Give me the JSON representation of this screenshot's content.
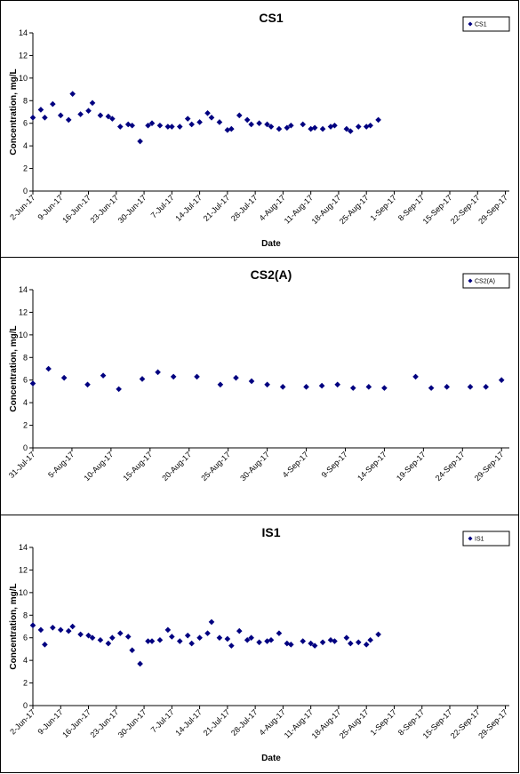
{
  "chart_data": [
    {
      "type": "scatter",
      "title": "CS1",
      "xlabel": "Date",
      "ylabel": "Concentration, mg/L",
      "ylim": [
        0,
        14
      ],
      "yticks": [
        "0",
        "2",
        "4",
        "6",
        "8",
        "10",
        "12",
        "14"
      ],
      "xlim": [
        "2017-06-02",
        "2017-09-30"
      ],
      "xtick_labels": [
        "2-Jun-17",
        "9-Jun-17",
        "16-Jun-17",
        "23-Jun-17",
        "30-Jun-17",
        "7-Jul-17",
        "14-Jul-17",
        "21-Jul-17",
        "28-Jul-17",
        "4-Aug-17",
        "11-Aug-17",
        "18-Aug-17",
        "25-Aug-17",
        "1-Sep-17",
        "8-Sep-17",
        "15-Sep-17",
        "22-Sep-17",
        "29-Sep-17"
      ],
      "xtick_dates": [
        "2017-06-02",
        "2017-06-09",
        "2017-06-16",
        "2017-06-23",
        "2017-06-30",
        "2017-07-07",
        "2017-07-14",
        "2017-07-21",
        "2017-07-28",
        "2017-08-04",
        "2017-08-11",
        "2017-08-18",
        "2017-08-25",
        "2017-09-01",
        "2017-09-08",
        "2017-09-15",
        "2017-09-22",
        "2017-09-29"
      ],
      "legend": "top-right",
      "series": [
        {
          "name": "CS1",
          "color": "#000080",
          "points": [
            {
              "x": "2017-06-02",
              "y": 6.5
            },
            {
              "x": "2017-06-04",
              "y": 7.2
            },
            {
              "x": "2017-06-05",
              "y": 6.5
            },
            {
              "x": "2017-06-07",
              "y": 7.7
            },
            {
              "x": "2017-06-09",
              "y": 6.7
            },
            {
              "x": "2017-06-11",
              "y": 6.3
            },
            {
              "x": "2017-06-12",
              "y": 8.6
            },
            {
              "x": "2017-06-14",
              "y": 6.8
            },
            {
              "x": "2017-06-16",
              "y": 7.1
            },
            {
              "x": "2017-06-17",
              "y": 7.8
            },
            {
              "x": "2017-06-19",
              "y": 6.7
            },
            {
              "x": "2017-06-21",
              "y": 6.6
            },
            {
              "x": "2017-06-22",
              "y": 6.4
            },
            {
              "x": "2017-06-24",
              "y": 5.7
            },
            {
              "x": "2017-06-26",
              "y": 5.9
            },
            {
              "x": "2017-06-27",
              "y": 5.8
            },
            {
              "x": "2017-06-29",
              "y": 4.4
            },
            {
              "x": "2017-07-01",
              "y": 5.8
            },
            {
              "x": "2017-07-02",
              "y": 6.0
            },
            {
              "x": "2017-07-04",
              "y": 5.8
            },
            {
              "x": "2017-07-06",
              "y": 5.7
            },
            {
              "x": "2017-07-07",
              "y": 5.7
            },
            {
              "x": "2017-07-09",
              "y": 5.7
            },
            {
              "x": "2017-07-11",
              "y": 6.4
            },
            {
              "x": "2017-07-12",
              "y": 5.9
            },
            {
              "x": "2017-07-14",
              "y": 6.1
            },
            {
              "x": "2017-07-16",
              "y": 6.9
            },
            {
              "x": "2017-07-17",
              "y": 6.5
            },
            {
              "x": "2017-07-19",
              "y": 6.1
            },
            {
              "x": "2017-07-21",
              "y": 5.4
            },
            {
              "x": "2017-07-22",
              "y": 5.5
            },
            {
              "x": "2017-07-24",
              "y": 6.7
            },
            {
              "x": "2017-07-26",
              "y": 6.3
            },
            {
              "x": "2017-07-27",
              "y": 5.9
            },
            {
              "x": "2017-07-29",
              "y": 6.0
            },
            {
              "x": "2017-07-31",
              "y": 5.9
            },
            {
              "x": "2017-08-01",
              "y": 5.7
            },
            {
              "x": "2017-08-03",
              "y": 5.5
            },
            {
              "x": "2017-08-05",
              "y": 5.6
            },
            {
              "x": "2017-08-06",
              "y": 5.8
            },
            {
              "x": "2017-08-09",
              "y": 5.9
            },
            {
              "x": "2017-08-11",
              "y": 5.5
            },
            {
              "x": "2017-08-12",
              "y": 5.6
            },
            {
              "x": "2017-08-14",
              "y": 5.5
            },
            {
              "x": "2017-08-16",
              "y": 5.7
            },
            {
              "x": "2017-08-17",
              "y": 5.8
            },
            {
              "x": "2017-08-20",
              "y": 5.5
            },
            {
              "x": "2017-08-21",
              "y": 5.3
            },
            {
              "x": "2017-08-23",
              "y": 5.7
            },
            {
              "x": "2017-08-25",
              "y": 5.7
            },
            {
              "x": "2017-08-26",
              "y": 5.8
            },
            {
              "x": "2017-08-28",
              "y": 6.3
            }
          ]
        }
      ]
    },
    {
      "type": "scatter",
      "title": "CS2(A)",
      "xlabel": "",
      "ylabel": "Concentration, mg/L",
      "ylim": [
        0,
        14
      ],
      "yticks": [
        "0",
        "2",
        "4",
        "6",
        "8",
        "10",
        "12",
        "14"
      ],
      "xlim": [
        "2017-07-31",
        "2017-09-30"
      ],
      "xtick_labels": [
        "31-Jul-17",
        "5-Aug-17",
        "10-Aug-17",
        "15-Aug-17",
        "20-Aug-17",
        "25-Aug-17",
        "30-Aug-17",
        "4-Sep-17",
        "9-Sep-17",
        "14-Sep-17",
        "19-Sep-17",
        "24-Sep-17",
        "29-Sep-17"
      ],
      "xtick_dates": [
        "2017-07-31",
        "2017-08-05",
        "2017-08-10",
        "2017-08-15",
        "2017-08-20",
        "2017-08-25",
        "2017-08-30",
        "2017-09-04",
        "2017-09-09",
        "2017-09-14",
        "2017-09-19",
        "2017-09-24",
        "2017-09-29"
      ],
      "legend": "top-right",
      "series": [
        {
          "name": "CS2(A)",
          "color": "#000080",
          "points": [
            {
              "x": "2017-07-31",
              "y": 5.7
            },
            {
              "x": "2017-08-02",
              "y": 7.0
            },
            {
              "x": "2017-08-04",
              "y": 6.2
            },
            {
              "x": "2017-08-07",
              "y": 5.6
            },
            {
              "x": "2017-08-09",
              "y": 6.4
            },
            {
              "x": "2017-08-11",
              "y": 5.2
            },
            {
              "x": "2017-08-14",
              "y": 6.1
            },
            {
              "x": "2017-08-16",
              "y": 6.7
            },
            {
              "x": "2017-08-18",
              "y": 6.3
            },
            {
              "x": "2017-08-21",
              "y": 6.3
            },
            {
              "x": "2017-08-24",
              "y": 5.6
            },
            {
              "x": "2017-08-26",
              "y": 6.2
            },
            {
              "x": "2017-08-28",
              "y": 5.9
            },
            {
              "x": "2017-08-30",
              "y": 5.6
            },
            {
              "x": "2017-09-01",
              "y": 5.4
            },
            {
              "x": "2017-09-04",
              "y": 5.4
            },
            {
              "x": "2017-09-06",
              "y": 5.5
            },
            {
              "x": "2017-09-08",
              "y": 5.6
            },
            {
              "x": "2017-09-10",
              "y": 5.3
            },
            {
              "x": "2017-09-12",
              "y": 5.4
            },
            {
              "x": "2017-09-14",
              "y": 5.3
            },
            {
              "x": "2017-09-18",
              "y": 6.3
            },
            {
              "x": "2017-09-20",
              "y": 5.3
            },
            {
              "x": "2017-09-22",
              "y": 5.4
            },
            {
              "x": "2017-09-25",
              "y": 5.4
            },
            {
              "x": "2017-09-27",
              "y": 5.4
            },
            {
              "x": "2017-09-29",
              "y": 6.0
            }
          ]
        }
      ]
    },
    {
      "type": "scatter",
      "title": "IS1",
      "xlabel": "Date",
      "ylabel": "Concentration, mg/L",
      "ylim": [
        0,
        14
      ],
      "yticks": [
        "0",
        "2",
        "4",
        "6",
        "8",
        "10",
        "12",
        "14"
      ],
      "xlim": [
        "2017-06-02",
        "2017-09-30"
      ],
      "xtick_labels": [
        "2-Jun-17",
        "9-Jun-17",
        "16-Jun-17",
        "23-Jun-17",
        "30-Jun-17",
        "7-Jul-17",
        "14-Jul-17",
        "21-Jul-17",
        "28-Jul-17",
        "4-Aug-17",
        "11-Aug-17",
        "18-Aug-17",
        "25-Aug-17",
        "1-Sep-17",
        "8-Sep-17",
        "15-Sep-17",
        "22-Sep-17",
        "29-Sep-17"
      ],
      "xtick_dates": [
        "2017-06-02",
        "2017-06-09",
        "2017-06-16",
        "2017-06-23",
        "2017-06-30",
        "2017-07-07",
        "2017-07-14",
        "2017-07-21",
        "2017-07-28",
        "2017-08-04",
        "2017-08-11",
        "2017-08-18",
        "2017-08-25",
        "2017-09-01",
        "2017-09-08",
        "2017-09-15",
        "2017-09-22",
        "2017-09-29"
      ],
      "legend": "top-right",
      "series": [
        {
          "name": "IS1",
          "color": "#000080",
          "points": [
            {
              "x": "2017-06-02",
              "y": 7.1
            },
            {
              "x": "2017-06-04",
              "y": 6.7
            },
            {
              "x": "2017-06-05",
              "y": 5.4
            },
            {
              "x": "2017-06-07",
              "y": 6.9
            },
            {
              "x": "2017-06-09",
              "y": 6.7
            },
            {
              "x": "2017-06-11",
              "y": 6.6
            },
            {
              "x": "2017-06-12",
              "y": 7.0
            },
            {
              "x": "2017-06-14",
              "y": 6.3
            },
            {
              "x": "2017-06-16",
              "y": 6.2
            },
            {
              "x": "2017-06-17",
              "y": 6.0
            },
            {
              "x": "2017-06-19",
              "y": 5.8
            },
            {
              "x": "2017-06-21",
              "y": 5.5
            },
            {
              "x": "2017-06-22",
              "y": 6.0
            },
            {
              "x": "2017-06-24",
              "y": 6.4
            },
            {
              "x": "2017-06-26",
              "y": 6.1
            },
            {
              "x": "2017-06-27",
              "y": 4.9
            },
            {
              "x": "2017-06-29",
              "y": 3.7
            },
            {
              "x": "2017-07-01",
              "y": 5.7
            },
            {
              "x": "2017-07-02",
              "y": 5.7
            },
            {
              "x": "2017-07-04",
              "y": 5.8
            },
            {
              "x": "2017-07-06",
              "y": 6.7
            },
            {
              "x": "2017-07-07",
              "y": 6.1
            },
            {
              "x": "2017-07-09",
              "y": 5.7
            },
            {
              "x": "2017-07-11",
              "y": 6.2
            },
            {
              "x": "2017-07-12",
              "y": 5.5
            },
            {
              "x": "2017-07-14",
              "y": 6.0
            },
            {
              "x": "2017-07-16",
              "y": 6.4
            },
            {
              "x": "2017-07-17",
              "y": 7.4
            },
            {
              "x": "2017-07-19",
              "y": 6.0
            },
            {
              "x": "2017-07-21",
              "y": 5.9
            },
            {
              "x": "2017-07-22",
              "y": 5.3
            },
            {
              "x": "2017-07-24",
              "y": 6.6
            },
            {
              "x": "2017-07-26",
              "y": 5.8
            },
            {
              "x": "2017-07-27",
              "y": 6.0
            },
            {
              "x": "2017-07-29",
              "y": 5.6
            },
            {
              "x": "2017-07-31",
              "y": 5.7
            },
            {
              "x": "2017-08-01",
              "y": 5.8
            },
            {
              "x": "2017-08-03",
              "y": 6.4
            },
            {
              "x": "2017-08-05",
              "y": 5.5
            },
            {
              "x": "2017-08-06",
              "y": 5.4
            },
            {
              "x": "2017-08-09",
              "y": 5.7
            },
            {
              "x": "2017-08-11",
              "y": 5.5
            },
            {
              "x": "2017-08-12",
              "y": 5.3
            },
            {
              "x": "2017-08-14",
              "y": 5.6
            },
            {
              "x": "2017-08-16",
              "y": 5.8
            },
            {
              "x": "2017-08-17",
              "y": 5.7
            },
            {
              "x": "2017-08-20",
              "y": 6.0
            },
            {
              "x": "2017-08-21",
              "y": 5.5
            },
            {
              "x": "2017-08-23",
              "y": 5.6
            },
            {
              "x": "2017-08-25",
              "y": 5.4
            },
            {
              "x": "2017-08-26",
              "y": 5.8
            },
            {
              "x": "2017-08-28",
              "y": 6.3
            }
          ]
        }
      ]
    }
  ]
}
